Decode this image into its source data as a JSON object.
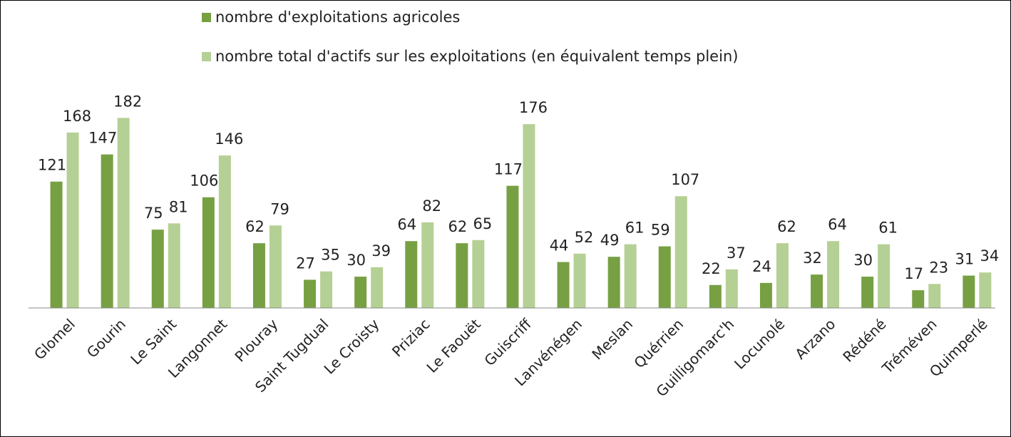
{
  "chart_data": {
    "type": "bar",
    "categories": [
      "Glomel",
      "Gourin",
      "Le Saint",
      "Langonnet",
      "Plouray",
      "Saint Tugdual",
      "Le Croisty",
      "Priziac",
      "Le Faouët",
      "Guiscriff",
      "Lanvénégen",
      "Meslan",
      "Quérrien",
      "Guilligomarc'h",
      "Locunolé",
      "Arzano",
      "Rédéné",
      "Tréméven",
      "Quimperlé"
    ],
    "series": [
      {
        "name": "nombre d'exploitations agricoles",
        "color": "#77a043",
        "values": [
          121,
          147,
          75,
          106,
          62,
          27,
          30,
          64,
          62,
          117,
          44,
          49,
          59,
          22,
          24,
          32,
          30,
          17,
          31
        ]
      },
      {
        "name": "nombre total d'actifs sur les exploitations (en équivalent temps plein)",
        "color": "#b5d094",
        "values": [
          168,
          182,
          81,
          146,
          79,
          35,
          39,
          82,
          65,
          176,
          52,
          61,
          107,
          37,
          62,
          64,
          61,
          23,
          34
        ]
      }
    ],
    "ylim": [
      0,
      200
    ],
    "legend": "top"
  }
}
